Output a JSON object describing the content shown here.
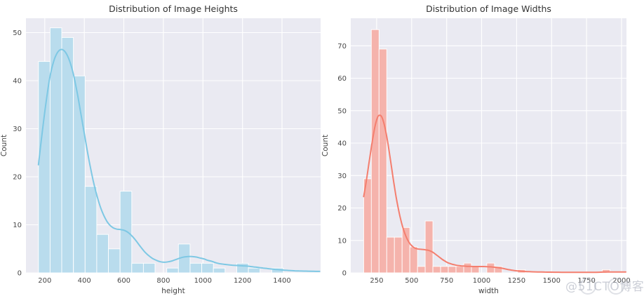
{
  "figure": {
    "background": "#ffffff",
    "panel_background": "#eaeaf2",
    "grid_color": "#ffffff"
  },
  "watermark": {
    "text": "@51CTO博客",
    "color": "#acb1be"
  },
  "chart_data": [
    {
      "type": "bar",
      "subtype": "histogram_with_kde",
      "title": "Distribution of Image Heights",
      "xlabel": "height",
      "ylabel": "Count",
      "bar_fill": "#b9dced",
      "bar_edge": "#ffffff",
      "line_color": "#7ec8e4",
      "xlim": [
        105,
        1595
      ],
      "ylim": [
        0,
        53
      ],
      "xticks": [
        200,
        400,
        600,
        800,
        1000,
        1200,
        1400
      ],
      "yticks": [
        0,
        10,
        20,
        30,
        40,
        50
      ],
      "grid": true,
      "legend": "none",
      "bin_start": 168,
      "bin_width": 59,
      "counts": [
        44,
        51,
        49,
        41,
        18,
        8,
        5,
        17,
        2,
        2,
        0,
        1,
        6,
        2,
        2,
        1,
        0,
        2,
        1,
        0,
        1
      ],
      "kde": [
        [
          168,
          22.5
        ],
        [
          185,
          28.5
        ],
        [
          205,
          35
        ],
        [
          225,
          40.5
        ],
        [
          245,
          44
        ],
        [
          265,
          45.9
        ],
        [
          285,
          46.5
        ],
        [
          305,
          45.9
        ],
        [
          325,
          44.2
        ],
        [
          345,
          41.3
        ],
        [
          365,
          37.3
        ],
        [
          385,
          32.6
        ],
        [
          405,
          27.8
        ],
        [
          425,
          23.2
        ],
        [
          445,
          19.2
        ],
        [
          465,
          15.9
        ],
        [
          485,
          13.3
        ],
        [
          505,
          11.4
        ],
        [
          525,
          10.1
        ],
        [
          545,
          9.4
        ],
        [
          565,
          9.1
        ],
        [
          585,
          9.0
        ],
        [
          605,
          8.8
        ],
        [
          625,
          8.3
        ],
        [
          645,
          7.5
        ],
        [
          665,
          6.5
        ],
        [
          685,
          5.4
        ],
        [
          705,
          4.4
        ],
        [
          725,
          3.6
        ],
        [
          745,
          3.0
        ],
        [
          765,
          2.6
        ],
        [
          785,
          2.3
        ],
        [
          805,
          2.2
        ],
        [
          825,
          2.3
        ],
        [
          845,
          2.5
        ],
        [
          865,
          2.8
        ],
        [
          885,
          3.1
        ],
        [
          905,
          3.3
        ],
        [
          925,
          3.4
        ],
        [
          945,
          3.4
        ],
        [
          965,
          3.3
        ],
        [
          985,
          3.1
        ],
        [
          1005,
          2.9
        ],
        [
          1025,
          2.6
        ],
        [
          1045,
          2.4
        ],
        [
          1065,
          2.1
        ],
        [
          1085,
          1.9
        ],
        [
          1105,
          1.8
        ],
        [
          1125,
          1.7
        ],
        [
          1145,
          1.6
        ],
        [
          1165,
          1.55
        ],
        [
          1185,
          1.5
        ],
        [
          1205,
          1.45
        ],
        [
          1225,
          1.4
        ],
        [
          1245,
          1.3
        ],
        [
          1265,
          1.2
        ],
        [
          1285,
          1.1
        ],
        [
          1305,
          1.0
        ],
        [
          1325,
          0.9
        ],
        [
          1345,
          0.8
        ],
        [
          1365,
          0.72
        ],
        [
          1385,
          0.65
        ],
        [
          1405,
          0.58
        ],
        [
          1425,
          0.52
        ],
        [
          1445,
          0.47
        ],
        [
          1465,
          0.43
        ],
        [
          1485,
          0.4
        ],
        [
          1520,
          0.36
        ],
        [
          1560,
          0.33
        ],
        [
          1590,
          0.3
        ]
      ]
    },
    {
      "type": "bar",
      "subtype": "histogram_with_kde",
      "title": "Distribution of Image Widths",
      "xlabel": "width",
      "ylabel": "Count",
      "bar_fill": "#f5b3ac",
      "bar_edge": "#ffffff",
      "line_color": "#f47e6e",
      "xlim": [
        65,
        2035
      ],
      "ylim": [
        0,
        78.5
      ],
      "xticks": [
        250,
        500,
        750,
        1000,
        1250,
        1500,
        1750,
        2000
      ],
      "yticks": [
        0,
        10,
        20,
        30,
        40,
        50,
        60,
        70
      ],
      "grid": true,
      "legend": "none",
      "bin_start": 157,
      "bin_width": 55,
      "counts": [
        29,
        75,
        69,
        11,
        11,
        14,
        8,
        2,
        16,
        2,
        2,
        2,
        2,
        3,
        2,
        0,
        3,
        2,
        0,
        0,
        1,
        0,
        0,
        0,
        0,
        0,
        0,
        0,
        0,
        0,
        0,
        1
      ],
      "kde": [
        [
          157,
          23.5
        ],
        [
          175,
          28
        ],
        [
          195,
          33.8
        ],
        [
          215,
          39.5
        ],
        [
          235,
          44.5
        ],
        [
          255,
          47.8
        ],
        [
          270,
          48.6
        ],
        [
          285,
          48.2
        ],
        [
          300,
          46.4
        ],
        [
          315,
          43.6
        ],
        [
          330,
          40
        ],
        [
          345,
          35.8
        ],
        [
          360,
          31.4
        ],
        [
          375,
          27.2
        ],
        [
          390,
          23.2
        ],
        [
          405,
          19.8
        ],
        [
          420,
          16.8
        ],
        [
          435,
          14.3
        ],
        [
          450,
          12.3
        ],
        [
          465,
          10.7
        ],
        [
          480,
          9.5
        ],
        [
          495,
          8.6
        ],
        [
          510,
          8.0
        ],
        [
          525,
          7.6
        ],
        [
          540,
          7.4
        ],
        [
          555,
          7.3
        ],
        [
          570,
          7.25
        ],
        [
          585,
          7.2
        ],
        [
          600,
          7.1
        ],
        [
          615,
          7.0
        ],
        [
          630,
          6.8
        ],
        [
          645,
          6.5
        ],
        [
          660,
          6.1
        ],
        [
          675,
          5.6
        ],
        [
          690,
          5.1
        ],
        [
          705,
          4.6
        ],
        [
          720,
          4.1
        ],
        [
          735,
          3.7
        ],
        [
          750,
          3.3
        ],
        [
          765,
          3.0
        ],
        [
          780,
          2.8
        ],
        [
          795,
          2.6
        ],
        [
          810,
          2.45
        ],
        [
          825,
          2.3
        ],
        [
          840,
          2.2
        ],
        [
          855,
          2.15
        ],
        [
          870,
          2.1
        ],
        [
          885,
          2.05
        ],
        [
          900,
          2.0
        ],
        [
          920,
          2.0
        ],
        [
          940,
          1.95
        ],
        [
          960,
          1.95
        ],
        [
          980,
          1.95
        ],
        [
          1000,
          1.95
        ],
        [
          1020,
          1.95
        ],
        [
          1040,
          1.9
        ],
        [
          1060,
          1.85
        ],
        [
          1080,
          1.8
        ],
        [
          1100,
          1.7
        ],
        [
          1120,
          1.6
        ],
        [
          1140,
          1.45
        ],
        [
          1160,
          1.3
        ],
        [
          1180,
          1.1
        ],
        [
          1200,
          0.95
        ],
        [
          1220,
          0.8
        ],
        [
          1240,
          0.68
        ],
        [
          1260,
          0.58
        ],
        [
          1280,
          0.5
        ],
        [
          1300,
          0.44
        ],
        [
          1330,
          0.38
        ],
        [
          1360,
          0.33
        ],
        [
          1400,
          0.28
        ],
        [
          1450,
          0.24
        ],
        [
          1500,
          0.21
        ],
        [
          1550,
          0.19
        ],
        [
          1600,
          0.17
        ],
        [
          1650,
          0.16
        ],
        [
          1700,
          0.15
        ],
        [
          1750,
          0.15
        ],
        [
          1800,
          0.16
        ],
        [
          1840,
          0.19
        ],
        [
          1870,
          0.23
        ],
        [
          1900,
          0.27
        ],
        [
          1930,
          0.29
        ],
        [
          1970,
          0.28
        ],
        [
          2030,
          0.25
        ]
      ]
    }
  ]
}
